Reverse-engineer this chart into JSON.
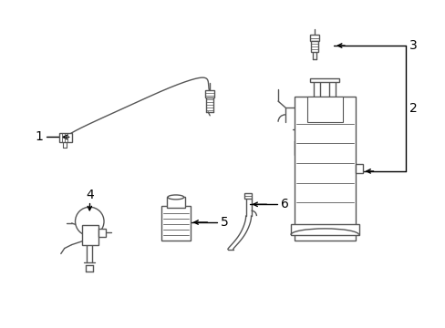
{
  "background_color": "#ffffff",
  "line_color": "#555555",
  "line_width": 1.0,
  "annotation_color": "#000000",
  "font_size": 10,
  "labels": [
    "1",
    "2",
    "3",
    "4",
    "5",
    "6"
  ],
  "figsize": [
    4.89,
    3.6
  ],
  "dpi": 100
}
